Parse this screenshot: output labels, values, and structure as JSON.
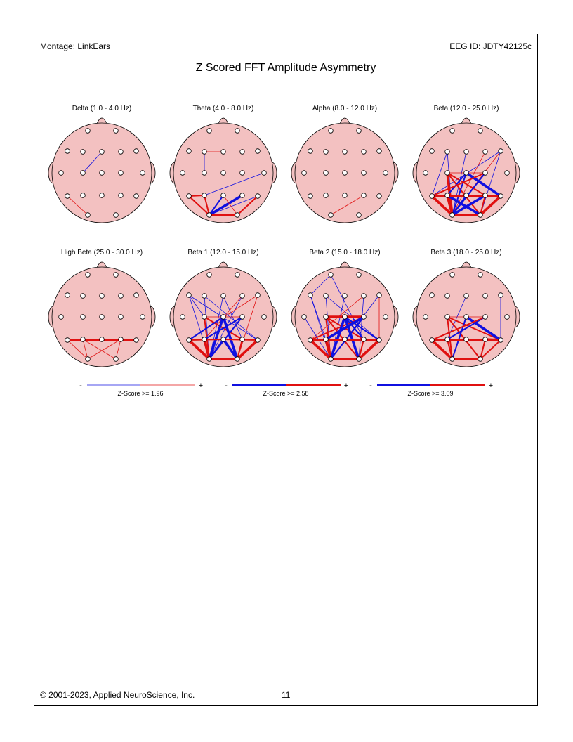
{
  "header": {
    "montage": "Montage:  LinkEars",
    "eeg_id": "EEG ID:  JDTY42125c"
  },
  "title": "Z Scored FFT Amplitude Asymmetry",
  "colors": {
    "positive": "#e01010",
    "negative": "#1010e0",
    "head_fill": "#f3c1c1",
    "node_fill": "#ffffff"
  },
  "electrodes": [
    "Fp1",
    "Fp2",
    "F7",
    "F3",
    "Fz",
    "F4",
    "F8",
    "T3",
    "C3",
    "Cz",
    "C4",
    "T4",
    "T5",
    "P3",
    "Pz",
    "P4",
    "T6",
    "O1",
    "O2"
  ],
  "heads": [
    {
      "label": "Delta (1.0 - 4.0 Hz)",
      "lines": [
        {
          "a": "Fz",
          "b": "C3",
          "sign": "neg",
          "level": 1
        },
        {
          "a": "T5",
          "b": "O1",
          "sign": "pos",
          "level": 1
        }
      ]
    },
    {
      "label": "Theta (4.0 - 8.0 Hz)",
      "lines": [
        {
          "a": "F3",
          "b": "C3",
          "sign": "neg",
          "level": 1
        },
        {
          "a": "F3",
          "b": "Fz",
          "sign": "pos",
          "level": 1
        },
        {
          "a": "T5",
          "b": "O1",
          "sign": "pos",
          "level": 2
        },
        {
          "a": "T5",
          "b": "P3",
          "sign": "pos",
          "level": 2
        },
        {
          "a": "P3",
          "b": "O1",
          "sign": "pos",
          "level": 2
        },
        {
          "a": "O1",
          "b": "Pz",
          "sign": "neg",
          "level": 2
        },
        {
          "a": "O1",
          "b": "P4",
          "sign": "neg",
          "level": 3
        },
        {
          "a": "O1",
          "b": "T6",
          "sign": "neg",
          "level": 1
        },
        {
          "a": "O1",
          "b": "O2",
          "sign": "pos",
          "level": 2
        },
        {
          "a": "O2",
          "b": "T6",
          "sign": "pos",
          "level": 2
        },
        {
          "a": "Pz",
          "b": "O2",
          "sign": "pos",
          "level": 1
        },
        {
          "a": "P3",
          "b": "T4",
          "sign": "neg",
          "level": 1
        }
      ]
    },
    {
      "label": "Alpha (8.0 - 12.0 Hz)",
      "lines": [
        {
          "a": "O1",
          "b": "P4",
          "sign": "pos",
          "level": 1
        }
      ]
    },
    {
      "label": "Beta (12.0 - 25.0 Hz)",
      "lines": [
        {
          "a": "F3",
          "b": "T5",
          "sign": "neg",
          "level": 1
        },
        {
          "a": "F3",
          "b": "O1",
          "sign": "neg",
          "level": 1
        },
        {
          "a": "Fz",
          "b": "O1",
          "sign": "neg",
          "level": 1
        },
        {
          "a": "F8",
          "b": "O2",
          "sign": "neg",
          "level": 1
        },
        {
          "a": "F8",
          "b": "T5",
          "sign": "neg",
          "level": 1
        },
        {
          "a": "F4",
          "b": "O1",
          "sign": "pos",
          "level": 1
        },
        {
          "a": "F8",
          "b": "O1",
          "sign": "pos",
          "level": 1
        },
        {
          "a": "C3",
          "b": "C4",
          "sign": "pos",
          "level": 1
        },
        {
          "a": "C3",
          "b": "O2",
          "sign": "pos",
          "level": 2
        },
        {
          "a": "C3",
          "b": "O1",
          "sign": "pos",
          "level": 3
        },
        {
          "a": "C3",
          "b": "P4",
          "sign": "pos",
          "level": 2
        },
        {
          "a": "Cz",
          "b": "O1",
          "sign": "neg",
          "level": 2
        },
        {
          "a": "Cz",
          "b": "T6",
          "sign": "neg",
          "level": 3
        },
        {
          "a": "Cz",
          "b": "P3",
          "sign": "neg",
          "level": 2
        },
        {
          "a": "C4",
          "b": "O1",
          "sign": "neg",
          "level": 2
        },
        {
          "a": "C4",
          "b": "T5",
          "sign": "pos",
          "level": 2
        },
        {
          "a": "T5",
          "b": "O1",
          "sign": "pos",
          "level": 3
        },
        {
          "a": "P3",
          "b": "O1",
          "sign": "pos",
          "level": 3
        },
        {
          "a": "T5",
          "b": "P3",
          "sign": "pos",
          "level": 2
        },
        {
          "a": "O1",
          "b": "O2",
          "sign": "pos",
          "level": 3
        },
        {
          "a": "O2",
          "b": "T6",
          "sign": "pos",
          "level": 3
        },
        {
          "a": "P4",
          "b": "O2",
          "sign": "pos",
          "level": 2
        },
        {
          "a": "O1",
          "b": "P4",
          "sign": "neg",
          "level": 3
        },
        {
          "a": "P3",
          "b": "O2",
          "sign": "neg",
          "level": 3
        },
        {
          "a": "Pz",
          "b": "O1",
          "sign": "neg",
          "level": 2
        },
        {
          "a": "Pz",
          "b": "T6",
          "sign": "neg",
          "level": 2
        },
        {
          "a": "T5",
          "b": "T6",
          "sign": "pos",
          "level": 2
        }
      ]
    },
    {
      "label": "High Beta (25.0 - 30.0 Hz)",
      "lines": [
        {
          "a": "T5",
          "b": "T6",
          "sign": "pos",
          "level": 2
        },
        {
          "a": "P3",
          "b": "O1",
          "sign": "pos",
          "level": 1
        },
        {
          "a": "P3",
          "b": "O2",
          "sign": "pos",
          "level": 1
        },
        {
          "a": "P4",
          "b": "O2",
          "sign": "pos",
          "level": 1
        },
        {
          "a": "T5",
          "b": "O1",
          "sign": "pos",
          "level": 1
        },
        {
          "a": "P4",
          "b": "T6",
          "sign": "pos",
          "level": 2
        },
        {
          "a": "O1",
          "b": "P4",
          "sign": "pos",
          "level": 1
        }
      ]
    },
    {
      "label": "Beta 1 (12.0 - 15.0 Hz)",
      "lines": [
        {
          "a": "F7",
          "b": "C3",
          "sign": "neg",
          "level": 1
        },
        {
          "a": "F7",
          "b": "O1",
          "sign": "neg",
          "level": 1
        },
        {
          "a": "F3",
          "b": "O1",
          "sign": "neg",
          "level": 1
        },
        {
          "a": "F3",
          "b": "T6",
          "sign": "neg",
          "level": 1
        },
        {
          "a": "Fz",
          "b": "O1",
          "sign": "neg",
          "level": 1
        },
        {
          "a": "Fz",
          "b": "P4",
          "sign": "neg",
          "level": 1
        },
        {
          "a": "F4",
          "b": "O1",
          "sign": "neg",
          "level": 1
        },
        {
          "a": "F4",
          "b": "P3",
          "sign": "pos",
          "level": 1
        },
        {
          "a": "F8",
          "b": "O2",
          "sign": "pos",
          "level": 1
        },
        {
          "a": "F8",
          "b": "T5",
          "sign": "pos",
          "level": 1
        },
        {
          "a": "F7",
          "b": "T6",
          "sign": "neg",
          "level": 1
        },
        {
          "a": "C3",
          "b": "O1",
          "sign": "pos",
          "level": 2
        },
        {
          "a": "C3",
          "b": "P4",
          "sign": "pos",
          "level": 2
        },
        {
          "a": "C3",
          "b": "C4",
          "sign": "pos",
          "level": 1
        },
        {
          "a": "Cz",
          "b": "O1",
          "sign": "neg",
          "level": 3
        },
        {
          "a": "Cz",
          "b": "O2",
          "sign": "neg",
          "level": 3
        },
        {
          "a": "Cz",
          "b": "T5",
          "sign": "neg",
          "level": 2
        },
        {
          "a": "C4",
          "b": "O1",
          "sign": "neg",
          "level": 2
        },
        {
          "a": "C4",
          "b": "P3",
          "sign": "neg",
          "level": 2
        },
        {
          "a": "T5",
          "b": "O1",
          "sign": "pos",
          "level": 3
        },
        {
          "a": "P3",
          "b": "O1",
          "sign": "pos",
          "level": 3
        },
        {
          "a": "O1",
          "b": "O2",
          "sign": "pos",
          "level": 3
        },
        {
          "a": "O2",
          "b": "T6",
          "sign": "pos",
          "level": 3
        },
        {
          "a": "P4",
          "b": "O2",
          "sign": "pos",
          "level": 2
        },
        {
          "a": "Pz",
          "b": "O2",
          "sign": "neg",
          "level": 3
        },
        {
          "a": "Pz",
          "b": "O1",
          "sign": "neg",
          "level": 2
        },
        {
          "a": "T5",
          "b": "Pz",
          "sign": "pos",
          "level": 2
        },
        {
          "a": "Pz",
          "b": "T6",
          "sign": "pos",
          "level": 2
        }
      ]
    },
    {
      "label": "Beta 2 (15.0 - 18.0 Hz)",
      "lines": [
        {
          "a": "Fp1",
          "b": "F7",
          "sign": "neg",
          "level": 1
        },
        {
          "a": "Fp1",
          "b": "P4",
          "sign": "neg",
          "level": 1
        },
        {
          "a": "F7",
          "b": "O1",
          "sign": "neg",
          "level": 1
        },
        {
          "a": "F7",
          "b": "P3",
          "sign": "neg",
          "level": 1
        },
        {
          "a": "F3",
          "b": "O1",
          "sign": "neg",
          "level": 1
        },
        {
          "a": "F3",
          "b": "T6",
          "sign": "neg",
          "level": 1
        },
        {
          "a": "Fz",
          "b": "O1",
          "sign": "neg",
          "level": 1
        },
        {
          "a": "F4",
          "b": "O2",
          "sign": "neg",
          "level": 1
        },
        {
          "a": "F4",
          "b": "T5",
          "sign": "pos",
          "level": 1
        },
        {
          "a": "F8",
          "b": "O1",
          "sign": "neg",
          "level": 1
        },
        {
          "a": "F8",
          "b": "T6",
          "sign": "pos",
          "level": 1
        },
        {
          "a": "T3",
          "b": "O1",
          "sign": "neg",
          "level": 1
        },
        {
          "a": "C3",
          "b": "Cz",
          "sign": "pos",
          "level": 3
        },
        {
          "a": "Cz",
          "b": "C4",
          "sign": "pos",
          "level": 3
        },
        {
          "a": "C3",
          "b": "O1",
          "sign": "pos",
          "level": 2
        },
        {
          "a": "C3",
          "b": "O2",
          "sign": "pos",
          "level": 2
        },
        {
          "a": "C3",
          "b": "P4",
          "sign": "pos",
          "level": 2
        },
        {
          "a": "C4",
          "b": "T5",
          "sign": "pos",
          "level": 2
        },
        {
          "a": "Cz",
          "b": "O1",
          "sign": "neg",
          "level": 3
        },
        {
          "a": "Cz",
          "b": "P4",
          "sign": "neg",
          "level": 2
        },
        {
          "a": "Cz",
          "b": "T6",
          "sign": "neg",
          "level": 2
        },
        {
          "a": "Cz",
          "b": "O2",
          "sign": "neg",
          "level": 3
        },
        {
          "a": "C4",
          "b": "O1",
          "sign": "neg",
          "level": 2
        },
        {
          "a": "C4",
          "b": "P3",
          "sign": "neg",
          "level": 3
        },
        {
          "a": "T5",
          "b": "O1",
          "sign": "pos",
          "level": 3
        },
        {
          "a": "P3",
          "b": "O1",
          "sign": "pos",
          "level": 3
        },
        {
          "a": "O1",
          "b": "O2",
          "sign": "pos",
          "level": 3
        },
        {
          "a": "O2",
          "b": "T6",
          "sign": "pos",
          "level": 3
        },
        {
          "a": "P4",
          "b": "O2",
          "sign": "pos",
          "level": 2
        },
        {
          "a": "T5",
          "b": "T6",
          "sign": "pos",
          "level": 2
        },
        {
          "a": "P3",
          "b": "P4",
          "sign": "pos",
          "level": 2
        }
      ]
    },
    {
      "label": "Beta 3 (18.0 - 25.0 Hz)",
      "lines": [
        {
          "a": "F8",
          "b": "T6",
          "sign": "neg",
          "level": 1
        },
        {
          "a": "Fz",
          "b": "P3",
          "sign": "neg",
          "level": 1
        },
        {
          "a": "C3",
          "b": "C4",
          "sign": "pos",
          "level": 1
        },
        {
          "a": "C3",
          "b": "O1",
          "sign": "pos",
          "level": 2
        },
        {
          "a": "C3",
          "b": "O2",
          "sign": "pos",
          "level": 2
        },
        {
          "a": "C3",
          "b": "T6",
          "sign": "pos",
          "level": 2
        },
        {
          "a": "Cz",
          "b": "T6",
          "sign": "neg",
          "level": 3
        },
        {
          "a": "Cz",
          "b": "O1",
          "sign": "neg",
          "level": 2
        },
        {
          "a": "C4",
          "b": "P3",
          "sign": "neg",
          "level": 2
        },
        {
          "a": "C4",
          "b": "T5",
          "sign": "pos",
          "level": 2
        },
        {
          "a": "T5",
          "b": "O1",
          "sign": "pos",
          "level": 3
        },
        {
          "a": "P3",
          "b": "O1",
          "sign": "pos",
          "level": 2
        },
        {
          "a": "O1",
          "b": "O2",
          "sign": "pos",
          "level": 2
        },
        {
          "a": "O2",
          "b": "T6",
          "sign": "pos",
          "level": 2
        },
        {
          "a": "P4",
          "b": "O2",
          "sign": "pos",
          "level": 2
        },
        {
          "a": "T5",
          "b": "T6",
          "sign": "pos",
          "level": 2
        },
        {
          "a": "P4",
          "b": "T6",
          "sign": "pos",
          "level": 3
        }
      ]
    }
  ],
  "legend": [
    {
      "minus": "-",
      "plus": "+",
      "label": "Z-Score >= 1.96",
      "level": 1
    },
    {
      "minus": "-",
      "plus": "+",
      "label": "Z-Score >= 2.58",
      "level": 2
    },
    {
      "minus": "-",
      "plus": "+",
      "label": "Z-Score >= 3.09",
      "level": 3
    }
  ],
  "footer": {
    "copyright": "© 2001-2023, Applied NeuroScience, Inc.",
    "page": "11"
  }
}
